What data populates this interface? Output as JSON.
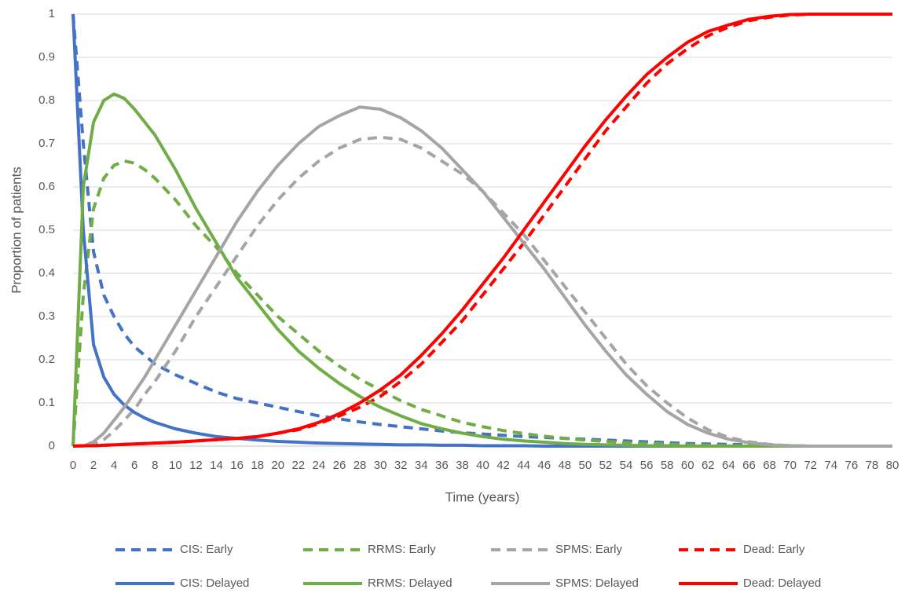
{
  "chart_data": {
    "type": "line",
    "x_label": "Time (years)",
    "y_label": "Proportion of patients",
    "x": [
      0,
      1,
      2,
      3,
      4,
      5,
      6,
      7,
      8,
      10,
      12,
      14,
      16,
      18,
      20,
      22,
      24,
      26,
      28,
      30,
      32,
      34,
      36,
      38,
      40,
      42,
      44,
      46,
      48,
      50,
      52,
      54,
      56,
      58,
      60,
      62,
      64,
      66,
      68,
      70,
      72,
      74,
      76,
      78,
      80
    ],
    "xlim": [
      0,
      80
    ],
    "xticks": [
      0,
      2,
      4,
      6,
      8,
      10,
      12,
      14,
      16,
      18,
      20,
      22,
      24,
      26,
      28,
      30,
      32,
      34,
      36,
      38,
      40,
      42,
      44,
      46,
      48,
      50,
      52,
      54,
      56,
      58,
      60,
      62,
      64,
      66,
      68,
      70,
      72,
      74,
      76,
      78,
      80
    ],
    "ylim": [
      0,
      1
    ],
    "yticks": [
      0,
      0.1,
      0.2,
      0.3,
      0.4,
      0.5,
      0.6,
      0.7,
      0.8,
      0.9,
      1
    ],
    "grid": true,
    "legend": "bottom",
    "series": [
      {
        "name": "CIS: Early",
        "color": "#4472c4",
        "dashed": true,
        "values": [
          1,
          0.7,
          0.45,
          0.35,
          0.3,
          0.26,
          0.23,
          0.21,
          0.19,
          0.165,
          0.145,
          0.125,
          0.11,
          0.1,
          0.09,
          0.08,
          0.07,
          0.063,
          0.056,
          0.05,
          0.045,
          0.04,
          0.035,
          0.031,
          0.028,
          0.025,
          0.022,
          0.02,
          0.018,
          0.016,
          0.014,
          0.012,
          0.01,
          0.008,
          0.006,
          0.005,
          0.004,
          0.003,
          0.002,
          0.001,
          0,
          0,
          0,
          0,
          0
        ]
      },
      {
        "name": "RRMS: Early",
        "color": "#70ad47",
        "dashed": true,
        "values": [
          0,
          0.35,
          0.55,
          0.62,
          0.65,
          0.66,
          0.655,
          0.64,
          0.62,
          0.57,
          0.51,
          0.46,
          0.4,
          0.35,
          0.3,
          0.26,
          0.22,
          0.185,
          0.155,
          0.13,
          0.105,
          0.085,
          0.07,
          0.055,
          0.045,
          0.036,
          0.029,
          0.023,
          0.018,
          0.014,
          0.011,
          0.008,
          0.006,
          0.005,
          0.003,
          0.002,
          0.001,
          0.001,
          0,
          0,
          0,
          0,
          0,
          0,
          0
        ]
      },
      {
        "name": "SPMS: Early",
        "color": "#a5a5a5",
        "dashed": true,
        "values": [
          0,
          0,
          0.005,
          0.015,
          0.035,
          0.06,
          0.085,
          0.12,
          0.15,
          0.22,
          0.3,
          0.37,
          0.44,
          0.51,
          0.57,
          0.62,
          0.66,
          0.69,
          0.71,
          0.715,
          0.71,
          0.69,
          0.66,
          0.63,
          0.59,
          0.54,
          0.49,
          0.43,
          0.37,
          0.31,
          0.25,
          0.19,
          0.14,
          0.1,
          0.065,
          0.038,
          0.02,
          0.01,
          0.004,
          0.001,
          0,
          0,
          0,
          0,
          0
        ]
      },
      {
        "name": "Dead: Early",
        "color": "#ff0000",
        "dashed": true,
        "values": [
          0,
          0.001,
          0.001,
          0.002,
          0.003,
          0.004,
          0.005,
          0.006,
          0.007,
          0.009,
          0.012,
          0.015,
          0.018,
          0.022,
          0.03,
          0.038,
          0.052,
          0.07,
          0.09,
          0.115,
          0.15,
          0.19,
          0.24,
          0.29,
          0.35,
          0.41,
          0.47,
          0.535,
          0.6,
          0.665,
          0.73,
          0.785,
          0.84,
          0.885,
          0.92,
          0.95,
          0.97,
          0.985,
          0.993,
          0.998,
          1,
          1,
          1,
          1,
          1
        ]
      },
      {
        "name": "CIS: Delayed",
        "color": "#4472c4",
        "dashed": false,
        "values": [
          1,
          0.5,
          0.235,
          0.16,
          0.12,
          0.095,
          0.078,
          0.065,
          0.055,
          0.04,
          0.03,
          0.022,
          0.018,
          0.014,
          0.011,
          0.009,
          0.007,
          0.006,
          0.005,
          0.004,
          0.003,
          0.003,
          0.002,
          0.002,
          0.001,
          0.001,
          0.001,
          0,
          0,
          0,
          0,
          0,
          0,
          0,
          0,
          0,
          0,
          0,
          0,
          0,
          0,
          0,
          0,
          0,
          0
        ]
      },
      {
        "name": "RRMS: Delayed",
        "color": "#70ad47",
        "dashed": false,
        "values": [
          0,
          0.6,
          0.75,
          0.8,
          0.815,
          0.805,
          0.78,
          0.75,
          0.72,
          0.64,
          0.55,
          0.47,
          0.39,
          0.33,
          0.27,
          0.22,
          0.18,
          0.145,
          0.115,
          0.09,
          0.07,
          0.052,
          0.04,
          0.03,
          0.022,
          0.016,
          0.012,
          0.009,
          0.006,
          0.004,
          0.003,
          0.002,
          0.001,
          0.001,
          0,
          0,
          0,
          0,
          0,
          0,
          0,
          0,
          0,
          0,
          0
        ]
      },
      {
        "name": "SPMS: Delayed",
        "color": "#a5a5a5",
        "dashed": false,
        "values": [
          0,
          0,
          0.01,
          0.03,
          0.06,
          0.09,
          0.125,
          0.16,
          0.2,
          0.28,
          0.36,
          0.44,
          0.52,
          0.59,
          0.65,
          0.7,
          0.74,
          0.765,
          0.785,
          0.78,
          0.76,
          0.73,
          0.69,
          0.64,
          0.59,
          0.53,
          0.47,
          0.41,
          0.345,
          0.28,
          0.22,
          0.165,
          0.12,
          0.08,
          0.05,
          0.03,
          0.016,
          0.008,
          0.003,
          0.001,
          0,
          0,
          0,
          0,
          0
        ]
      },
      {
        "name": "Dead: Delayed",
        "color": "#ff0000",
        "dashed": false,
        "values": [
          0,
          0.001,
          0.001,
          0.002,
          0.003,
          0.004,
          0.005,
          0.006,
          0.007,
          0.009,
          0.012,
          0.015,
          0.018,
          0.022,
          0.03,
          0.04,
          0.055,
          0.075,
          0.1,
          0.13,
          0.165,
          0.21,
          0.26,
          0.315,
          0.375,
          0.435,
          0.5,
          0.565,
          0.63,
          0.695,
          0.755,
          0.81,
          0.86,
          0.9,
          0.935,
          0.96,
          0.975,
          0.988,
          0.995,
          0.999,
          1,
          1,
          1,
          1,
          1
        ]
      }
    ]
  }
}
